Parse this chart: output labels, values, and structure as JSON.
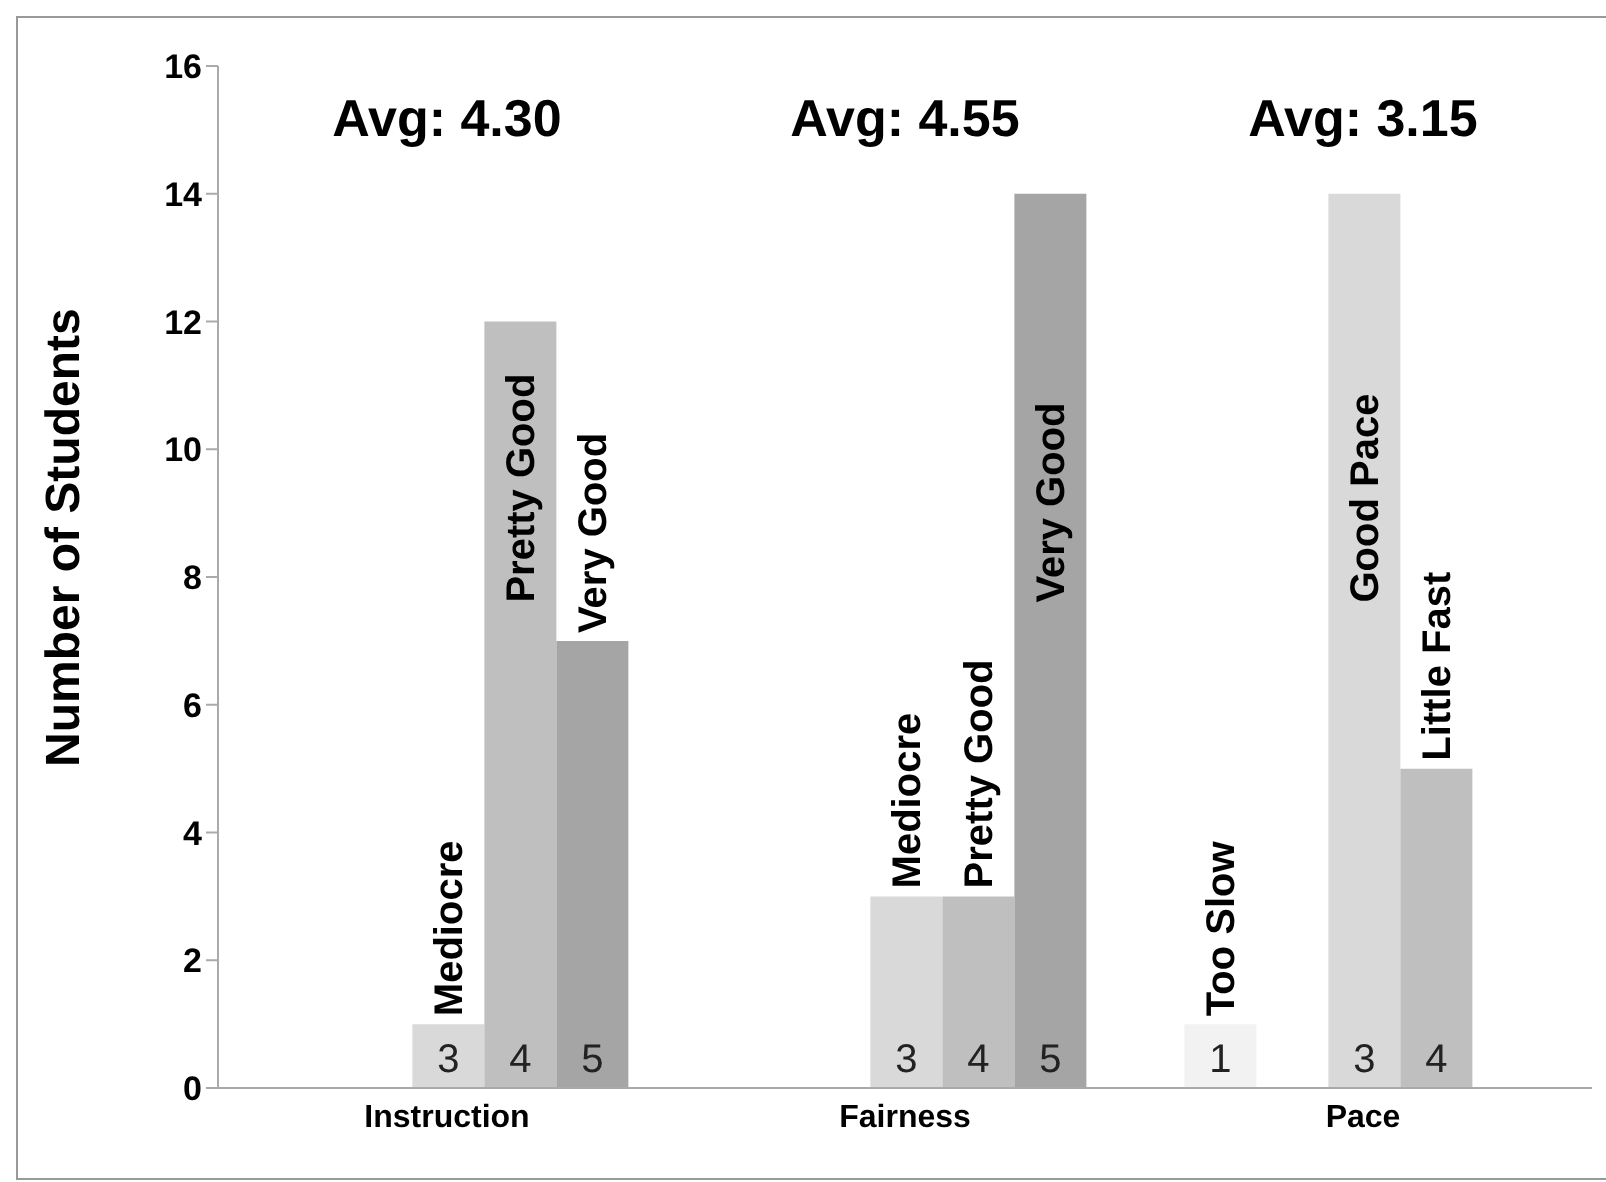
{
  "chart_data": {
    "type": "bar",
    "ylabel": "Number of Students",
    "categories": [
      "Instruction",
      "Fairness",
      "Pace"
    ],
    "series": [
      {
        "name": "1",
        "color": "#f2f2f2",
        "values": [
          null,
          null,
          1
        ],
        "value_labels": [
          null,
          null,
          "Too Slow"
        ]
      },
      {
        "values": [
          null,
          null,
          null
        ]
      },
      {
        "name": "3",
        "color": "#d9d9d9",
        "values": [
          1,
          3,
          14
        ],
        "value_labels": [
          "Mediocre",
          "Mediocre",
          "Good Pace"
        ]
      },
      {
        "name": "4",
        "color": "#bfbfbf",
        "values": [
          12,
          3,
          5
        ],
        "value_labels": [
          "Pretty Good",
          "Pretty Good",
          "Little Fast"
        ]
      },
      {
        "name": "5",
        "color": "#a5a5a5",
        "values": [
          7,
          14,
          null
        ],
        "value_labels": [
          "Very Good",
          "Very Good",
          null
        ]
      }
    ],
    "ylim": [
      0,
      16
    ],
    "yticks": [
      0,
      2,
      4,
      6,
      8,
      10,
      12,
      14,
      16
    ],
    "grid": false,
    "legend": false,
    "annotations": [
      "Avg: 4.30",
      "Avg: 4.55",
      "Avg: 3.15"
    ]
  }
}
